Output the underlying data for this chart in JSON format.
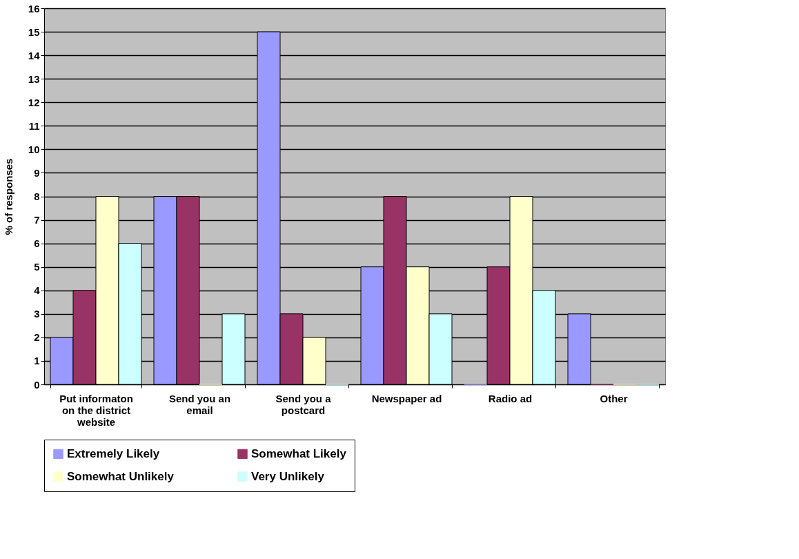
{
  "chart_data": {
    "type": "bar",
    "ylabel": "% of responses",
    "categories": [
      "Put informaton on the district website",
      "Send you an email",
      "Send you a postcard",
      "Newspaper ad",
      "Radio ad",
      "Other"
    ],
    "series": [
      {
        "name": "Extremely Likely",
        "color": "#9999ff",
        "values": [
          2,
          8,
          15,
          5,
          0,
          3
        ]
      },
      {
        "name": "Somewhat Likely",
        "color": "#993366",
        "values": [
          4,
          8,
          3,
          8,
          5,
          0
        ]
      },
      {
        "name": "Somewhat Unlikely",
        "color": "#ffffcc",
        "values": [
          8,
          0,
          2,
          5,
          8,
          0
        ]
      },
      {
        "name": "Very Unlikely",
        "color": "#ccffff",
        "values": [
          6,
          3,
          0,
          3,
          4,
          0
        ]
      }
    ],
    "ylim": [
      0,
      16
    ],
    "yticks": [
      0,
      1,
      2,
      3,
      4,
      5,
      6,
      7,
      8,
      9,
      10,
      11,
      12,
      13,
      14,
      15,
      16
    ],
    "grid": "y",
    "legend": "bottom"
  }
}
